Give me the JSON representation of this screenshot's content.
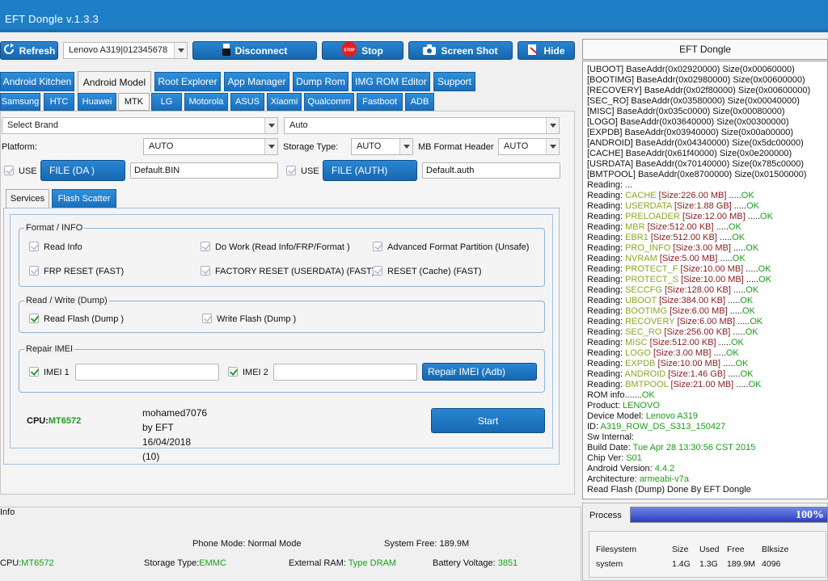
{
  "window": {
    "title": "EFT Dongle  v.1.3.3"
  },
  "toolbar": {
    "refresh": "Refresh",
    "device_select": "Lenovo A319|012345678",
    "disconnect": "Disconnect",
    "stop": "Stop",
    "screenshot": "Screen Shot",
    "hide": "Hide",
    "stop_badge": "STOP"
  },
  "main_tabs": [
    "Android Kitchen",
    "Android Model",
    "Root Explorer",
    "App Manager",
    "Dump Rom",
    "IMG ROM Editor",
    "Support"
  ],
  "brand_tabs": [
    "Samsung",
    "HTC",
    "Huawei",
    "MTK",
    "LG",
    "Motorola",
    "ASUS",
    "Xiaomi",
    "Qualcomm",
    "Fastboot",
    "ADB"
  ],
  "selects": {
    "brand": "Select Brand",
    "model": "Auto",
    "platform_label": "Platform:",
    "platform": "AUTO",
    "storage_label": "Storage Type:",
    "storage": "AUTO",
    "mb_label": "MB Format Header",
    "mb": "AUTO"
  },
  "files": {
    "use1": "USE",
    "da_btn": "FILE (DA )",
    "da_value": "Default.BIN",
    "use2": "USE",
    "auth_btn": "FILE (AUTH)",
    "auth_value": "Default.auth"
  },
  "sub_tabs": [
    "Services",
    "Flash Scatter"
  ],
  "format_group": {
    "title": "Format / INFO",
    "items": [
      "Read Info",
      "Do Work (Read Info/FRP/Format )",
      "Advanced Format Partition (Unsafe)",
      "FRP RESET (FAST)",
      "FACTORY RESET (USERDATA) (FAST)",
      "RESET (Cache) (FAST)"
    ]
  },
  "rw_group": {
    "title": "Read / Write (Dump)",
    "read": "Read Flash (Dump )",
    "write": "Write Flash (Dump )"
  },
  "imei_group": {
    "title": "Repair IMEI",
    "imei1": "IMEI 1",
    "imei2": "IMEI 2",
    "repair": "Repair IMEI (Adb)"
  },
  "cpu": {
    "label": "CPU:",
    "value": "MT6572"
  },
  "credits": {
    "line1": "mohamed7076",
    "line2": "by EFT",
    "line3": "16/04/2018",
    "line4": "(10)"
  },
  "start": "Start",
  "info": {
    "title": "Info",
    "phone_mode": "Phone Mode: Normal Mode",
    "system_free": "System Free: 189.9M",
    "cpu_label": "CPU:",
    "cpu_value": "MT6572",
    "storage_label": "Storage Type:",
    "storage_value": "EMMC",
    "ram_label": "External RAM:",
    "ram_value": "Type DRAM",
    "battery_label": "Battery Voltage:",
    "battery_value": "3851"
  },
  "right_panel": {
    "title": "EFT Dongle",
    "log": [
      {
        "t": "[UBOOT] BaseAddr(0x02920000) Size(0x00060000)"
      },
      {
        "t": "[BOOTIMG] BaseAddr(0x02980000) Size(0x00600000)"
      },
      {
        "t": "[RECOVERY] BaseAddr(0x02f80000) Size(0x00600000)"
      },
      {
        "t": "[SEC_RO] BaseAddr(0x03580000) Size(0x00040000)"
      },
      {
        "t": "[MISC] BaseAddr(0x035c0000) Size(0x00080000)"
      },
      {
        "t": "[LOGO] BaseAddr(0x03640000) Size(0x00300000)"
      },
      {
        "t": "[EXPDB] BaseAddr(0x03940000) Size(0x00a00000)"
      },
      {
        "t": "[ANDROID] BaseAddr(0x04340000) Size(0x5dc00000)"
      },
      {
        "t": "[CACHE] BaseAddr(0x61f40000) Size(0x0e200000)"
      },
      {
        "t": "[USRDATA] BaseAddr(0x70140000) Size(0x785c0000)"
      },
      {
        "t": "[BMTPOOL] BaseAddr(0xe8700000) Size(0x01500000)"
      },
      {
        "t": "Reading: ..."
      },
      {
        "p": "Reading: ",
        "n": "CACHE",
        "s": " [Size:226.00 MB]",
        "d": " .....",
        "ok": "OK"
      },
      {
        "p": "Reading: ",
        "n": "USERDATA",
        "s": " [Size:1.88 GB]",
        "d": " .....",
        "ok": "OK"
      },
      {
        "p": "Reading: ",
        "n": "PRELOADER",
        "s": " [Size:12.00 MB]",
        "d": " .....",
        "ok": "OK"
      },
      {
        "p": "Reading: ",
        "n": "MBR",
        "s": " [Size:512.00 KB]",
        "d": " .....",
        "ok": "OK"
      },
      {
        "p": "Reading: ",
        "n": "EBR1",
        "s": " [Size:512.00 KB]",
        "d": " .....",
        "ok": "OK"
      },
      {
        "p": "Reading: ",
        "n": "PRO_INFO",
        "s": " [Size:3.00 MB]",
        "d": " .....",
        "ok": "OK"
      },
      {
        "p": "Reading: ",
        "n": "NVRAM",
        "s": " [Size:5.00 MB]",
        "d": " .....",
        "ok": "OK"
      },
      {
        "p": "Reading: ",
        "n": "PROTECT_F",
        "s": " [Size:10.00 MB]",
        "d": " .....",
        "ok": "OK"
      },
      {
        "p": "Reading: ",
        "n": "PROTECT_S",
        "s": " [Size:10.00 MB]",
        "d": " .....",
        "ok": "OK"
      },
      {
        "p": "Reading: ",
        "n": "SECCFG",
        "s": " [Size:128.00 KB]",
        "d": " .....",
        "ok": "OK"
      },
      {
        "p": "Reading: ",
        "n": "UBOOT",
        "s": " [Size:384.00 KB]",
        "d": " .....",
        "ok": "OK"
      },
      {
        "p": "Reading: ",
        "n": "BOOTIMG",
        "s": " [Size:6.00 MB]",
        "d": " .....",
        "ok": "OK"
      },
      {
        "p": "Reading: ",
        "n": "RECOVERY",
        "s": " [Size:6.00 MB]",
        "d": " .....",
        "ok": "OK"
      },
      {
        "p": "Reading: ",
        "n": "SEC_RO",
        "s": " [Size:256.00 KB]",
        "d": " .....",
        "ok": "OK"
      },
      {
        "p": "Reading: ",
        "n": "MISC",
        "s": " [Size:512.00 KB]",
        "d": " .....",
        "ok": "OK"
      },
      {
        "p": "Reading: ",
        "n": "LOGO",
        "s": " [Size:3.00 MB]",
        "d": " .....",
        "ok": "OK"
      },
      {
        "p": "Reading: ",
        "n": "EXPDB",
        "s": " [Size:10.00 MB]",
        "d": " .....",
        "ok": "OK"
      },
      {
        "p": "Reading: ",
        "n": "ANDROID",
        "s": " [Size:1.46 GB]",
        "d": " .....",
        "ok": "OK"
      },
      {
        "p": "Reading: ",
        "n": "BMTPOOL",
        "s": " [Size:21.00 MB]",
        "d": " .....",
        "ok": "OK"
      },
      {
        "p": "ROM info.......",
        "ok": "OK"
      },
      {
        "p": "Product: ",
        "v": "LENOVO"
      },
      {
        "p": "Device Model: ",
        "v": "Lenovo A319"
      },
      {
        "p": "ID: ",
        "v": "A319_ROW_DS_S313_150427"
      },
      {
        "p": "Sw Internal:"
      },
      {
        "p": "Build Date: ",
        "v": "Tue Apr 28 13:30:56 CST 2015"
      },
      {
        "p": "Chip Ver: ",
        "v": "S01"
      },
      {
        "p": "Android Version: ",
        "v": "4.4.2"
      },
      {
        "p": "Architecture: ",
        "v": "armeabi-v7a"
      },
      {
        "t": "Read Flash (Dump) Done By EFT Dongle"
      }
    ],
    "process_label": "Process",
    "progress": 100,
    "progress_text": "100%",
    "fs_headers": [
      "Filesystem",
      "Size",
      "Used",
      "Free",
      "Blksize"
    ],
    "fs_row": [
      "system",
      "1.4G",
      "1.3G",
      "189.9M",
      "4096"
    ]
  },
  "colors": {
    "accent": "#1e7fc7",
    "ok_green": "#1aa01a",
    "olive": "#7a9a14"
  }
}
